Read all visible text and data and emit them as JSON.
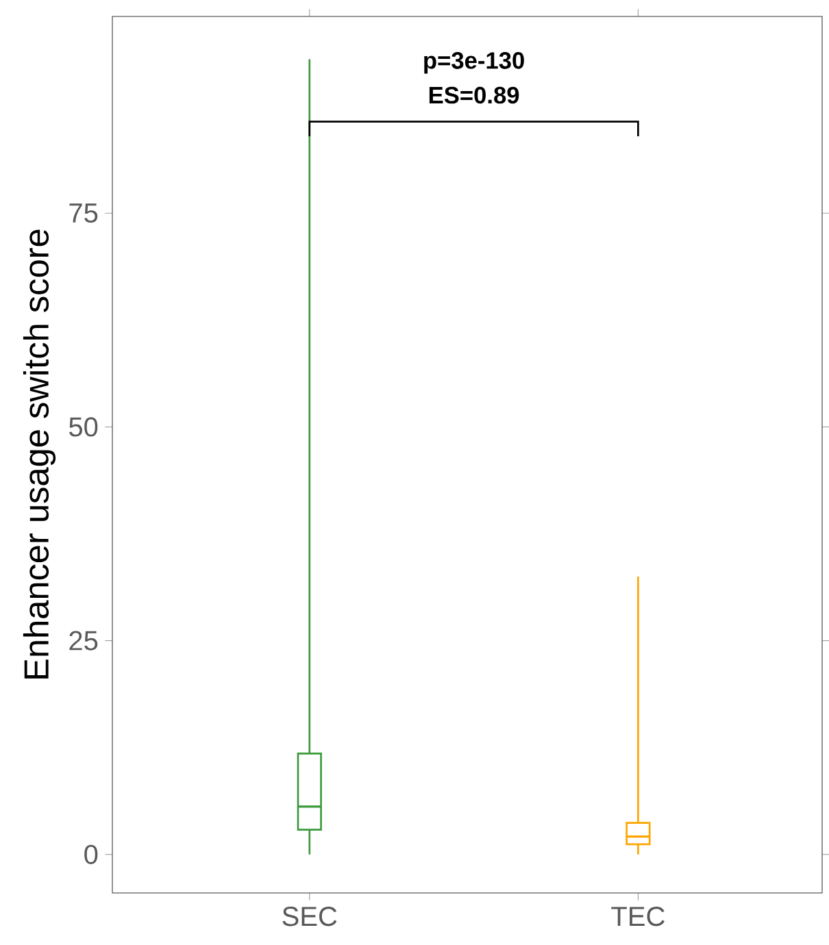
{
  "chart_data": {
    "type": "box",
    "ylabel": "Enhancer usage switch score",
    "categories": [
      "SEC",
      "TEC"
    ],
    "series": [
      {
        "color": "#3a9a3a",
        "boxes": [
          {
            "low": 0,
            "q1": 2.9,
            "median": 5.6,
            "q3": 11.8,
            "high": 93
          },
          null
        ]
      },
      {
        "color": "#ffa500",
        "boxes": [
          null,
          {
            "low": 0,
            "q1": 1.2,
            "median": 2.1,
            "q3": 3.7,
            "high": 32.5
          }
        ]
      }
    ],
    "ylim": [
      -4.5,
      98
    ],
    "yticks": [
      0,
      25,
      50,
      75
    ],
    "grid": false,
    "annotations": [
      "p=3e-130",
      "ES=0.89"
    ]
  }
}
